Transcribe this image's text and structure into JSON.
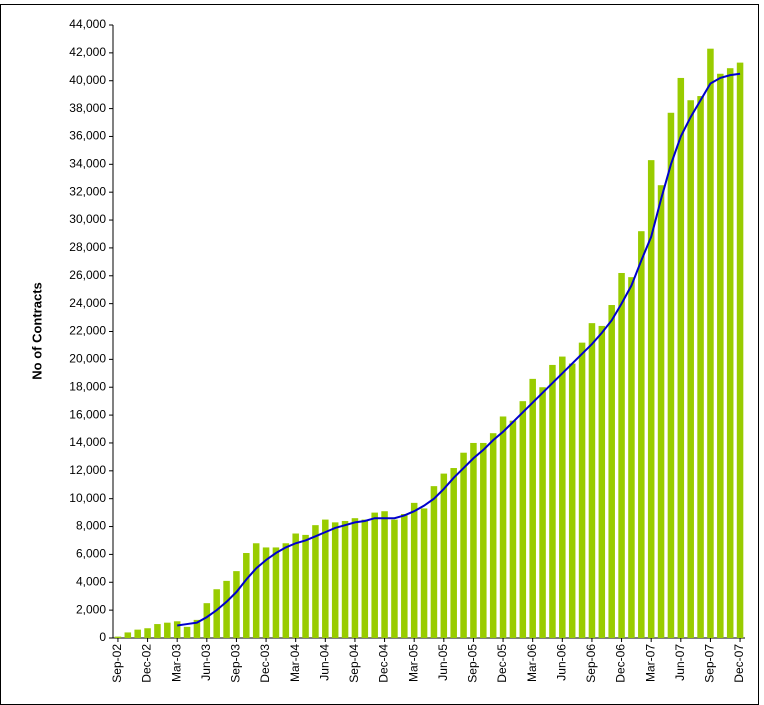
{
  "chart_data": {
    "type": "bar-line",
    "y_label": "No of Contracts",
    "categories": [
      "Sep-02",
      null,
      null,
      "Dec-02",
      null,
      null,
      "Mar-03",
      null,
      null,
      "Jun-03",
      null,
      null,
      "Sep-03",
      null,
      null,
      "Dec-03",
      null,
      null,
      "Mar-04",
      null,
      null,
      "Jun-04",
      null,
      null,
      "Sep-04",
      null,
      null,
      "Dec-04",
      null,
      null,
      "Mar-05",
      null,
      null,
      "Jun-05",
      null,
      null,
      "Sep-05",
      null,
      null,
      "Dec-05",
      null,
      null,
      "Mar-06",
      null,
      null,
      "Jun-06",
      null,
      null,
      "Sep-06",
      null,
      null,
      "Dec-06",
      null,
      null,
      "Mar-07",
      null,
      null,
      "Jun-07",
      null,
      null,
      "Sep-07",
      null,
      null,
      "Dec-07"
    ],
    "series": [
      {
        "type": "bar",
        "color": "#99cc00",
        "values": [
          100,
          400,
          600,
          700,
          1000,
          1100,
          1200,
          800,
          1300,
          2500,
          3500,
          4100,
          4800,
          6100,
          6800,
          6500,
          6500,
          6800,
          7500,
          7400,
          8100,
          8500,
          8300,
          8400,
          8600,
          8500,
          9000,
          9100,
          8500,
          8900,
          9700,
          9300,
          10900,
          11800,
          12200,
          13300,
          14000,
          14000,
          14700,
          15900,
          15600,
          17000,
          18600,
          18000,
          19600,
          20200,
          19700,
          21200,
          22600,
          22400,
          23900,
          26200,
          25900,
          29200,
          34300,
          32500,
          37700,
          40200,
          38600,
          38900,
          42300,
          40500,
          40900,
          41300
        ]
      },
      {
        "type": "line",
        "color": "#0000cc",
        "values": [
          null,
          null,
          null,
          null,
          null,
          null,
          900,
          1000,
          1100,
          1500,
          2000,
          2600,
          3300,
          4200,
          5000,
          5600,
          6100,
          6500,
          6800,
          7000,
          7300,
          7600,
          7900,
          8100,
          8300,
          8400,
          8600,
          8600,
          8600,
          8800,
          9100,
          9500,
          10000,
          10700,
          11500,
          12200,
          12900,
          13500,
          14200,
          14800,
          15500,
          16200,
          16900,
          17600,
          18300,
          19000,
          19700,
          20400,
          21100,
          21900,
          22800,
          24000,
          25300,
          27100,
          28800,
          31500,
          34000,
          36000,
          37400,
          38600,
          39800,
          40200,
          40400,
          40500
        ]
      }
    ],
    "ylim": [
      0,
      44000
    ],
    "yticks": [
      0,
      {
        "value": 2000,
        "label": "2,000"
      },
      {
        "value": 4000,
        "label": "4,000"
      },
      {
        "value": 6000,
        "label": "6,000"
      },
      {
        "value": 8000,
        "label": "8,000"
      },
      {
        "value": 10000,
        "label": "10,000"
      },
      {
        "value": 12000,
        "label": "12,000"
      },
      {
        "value": 14000,
        "label": "14,000"
      },
      {
        "value": 16000,
        "label": "16,000"
      },
      {
        "value": 18000,
        "label": "18,000"
      },
      {
        "value": 20000,
        "label": "20,000"
      },
      {
        "value": 22000,
        "label": "22,000"
      },
      {
        "value": 24000,
        "label": "24,000"
      },
      {
        "value": 26000,
        "label": "26,000"
      },
      {
        "value": 28000,
        "label": "28,000"
      },
      {
        "value": 30000,
        "label": "30,000"
      },
      {
        "value": 32000,
        "label": "32,000"
      },
      {
        "value": 34000,
        "label": "34,000"
      },
      {
        "value": 36000,
        "label": "36,000"
      },
      {
        "value": 38000,
        "label": "38,000"
      },
      {
        "value": 40000,
        "label": "40,000"
      },
      {
        "value": 42000,
        "label": "42,000"
      },
      {
        "value": 44000,
        "label": "44,000"
      }
    ],
    "grid": false
  }
}
